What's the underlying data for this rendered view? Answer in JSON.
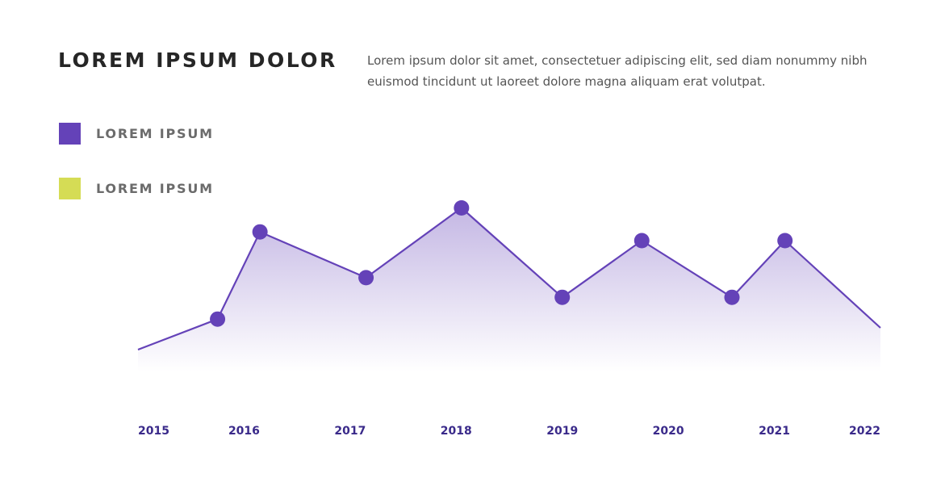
{
  "header": {
    "title": "LOREM IPSUM DOLOR",
    "description": "Lorem ipsum dolor sit amet, consectetuer adipiscing elit, sed diam nonummy nibh euismod tincidunt ut laoreet dolore magna aliquam erat volutpat."
  },
  "legend": {
    "items": [
      {
        "label": "LOREM IPSUM",
        "color": "#6442b8"
      },
      {
        "label": "LOREM IPSUM",
        "color": "#d5dc55"
      }
    ]
  },
  "chart_data": {
    "type": "area",
    "title": "",
    "xlabel": "",
    "ylabel": "",
    "x_ticks": [
      "2015",
      "2016",
      "2017",
      "2018",
      "2019",
      "2020",
      "2021",
      "2022"
    ],
    "xlim": [
      2015,
      2022
    ],
    "ylim": [
      0,
      100
    ],
    "grid": false,
    "line_color": "#6442b8",
    "fill_color": "#6442b8",
    "series": [
      {
        "x": [
          2015,
          2015.75,
          2016.15,
          2017.15,
          2018.05,
          2019.0,
          2019.75,
          2020.6,
          2021.1,
          2022
        ],
        "y": [
          10,
          24,
          64,
          43,
          75,
          34,
          60,
          34,
          60,
          20
        ],
        "markers": [
          false,
          true,
          true,
          true,
          true,
          true,
          true,
          true,
          true,
          false
        ]
      }
    ]
  }
}
